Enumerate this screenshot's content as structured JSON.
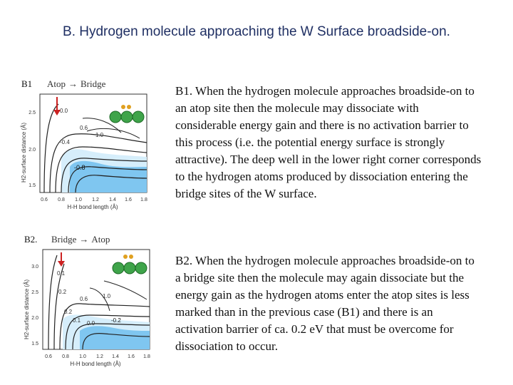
{
  "slide_title": "B. Hydrogen molecule approaching the W Surface broadside-on.",
  "panels": [
    {
      "id": "B1",
      "label": "B1",
      "caption_from": "Atop",
      "caption_arrow": "→",
      "caption_to": "Bridge",
      "ylabel": "H2-surface distance (Å)",
      "xlabel": "H-H bond length (Å)",
      "xticks": [
        "0.6",
        "0.8",
        "1.0",
        "1.2",
        "1.4",
        "1.6",
        "1.8"
      ],
      "yticks": [
        "2.5",
        "2.0",
        "1.5"
      ],
      "contour_labels": [
        "0.0",
        "0.6",
        "1.0",
        "-0.4",
        "-0.8"
      ],
      "text": "B1. When the hydrogen molecule approaches broadside-on to an atop site then the molecule may dissociate with considerable energy gain and there is no activation barrier to this process (i.e. the potential energy surface is strongly attractive). The deep well in the lower right corner corresponds to the hydrogen atoms produced by dissociation entering the bridge sites of the W surface."
    },
    {
      "id": "B2",
      "label": "B2.",
      "caption_from": "Bridge",
      "caption_arrow": "→",
      "caption_to": "Atop",
      "ylabel": "H2-surface distance (Å)",
      "xlabel": "H-H bond length (Å)",
      "xticks": [
        "0.6",
        "0.8",
        "1.0",
        "1.2",
        "1.4",
        "1.6",
        "1.8"
      ],
      "yticks": [
        "3.0",
        "2.5",
        "2.0",
        "1.5"
      ],
      "contour_labels": [
        "0.1",
        "0.2",
        "0.6",
        "1.0",
        "0.2",
        "0.1",
        "0.0",
        "-0.2"
      ],
      "text": "B2. When the hydrogen molecule approaches broadside-on to a bridge site then the molecule may again dissociate but the energy gain as the hydrogen atoms enter the atop sites is less marked than in the previous case (B1) and there is an activation barrier of ca. 0.2 eV that must be overcome for dissociation to occur."
    }
  ],
  "colors": {
    "title": "#1f2f63",
    "well_fill": "#7fc6f0",
    "well_light": "#d6eefb",
    "surface_atom": "#3fa44a",
    "h_atom": "#e0a020",
    "approach_arrow": "#cc2222"
  }
}
